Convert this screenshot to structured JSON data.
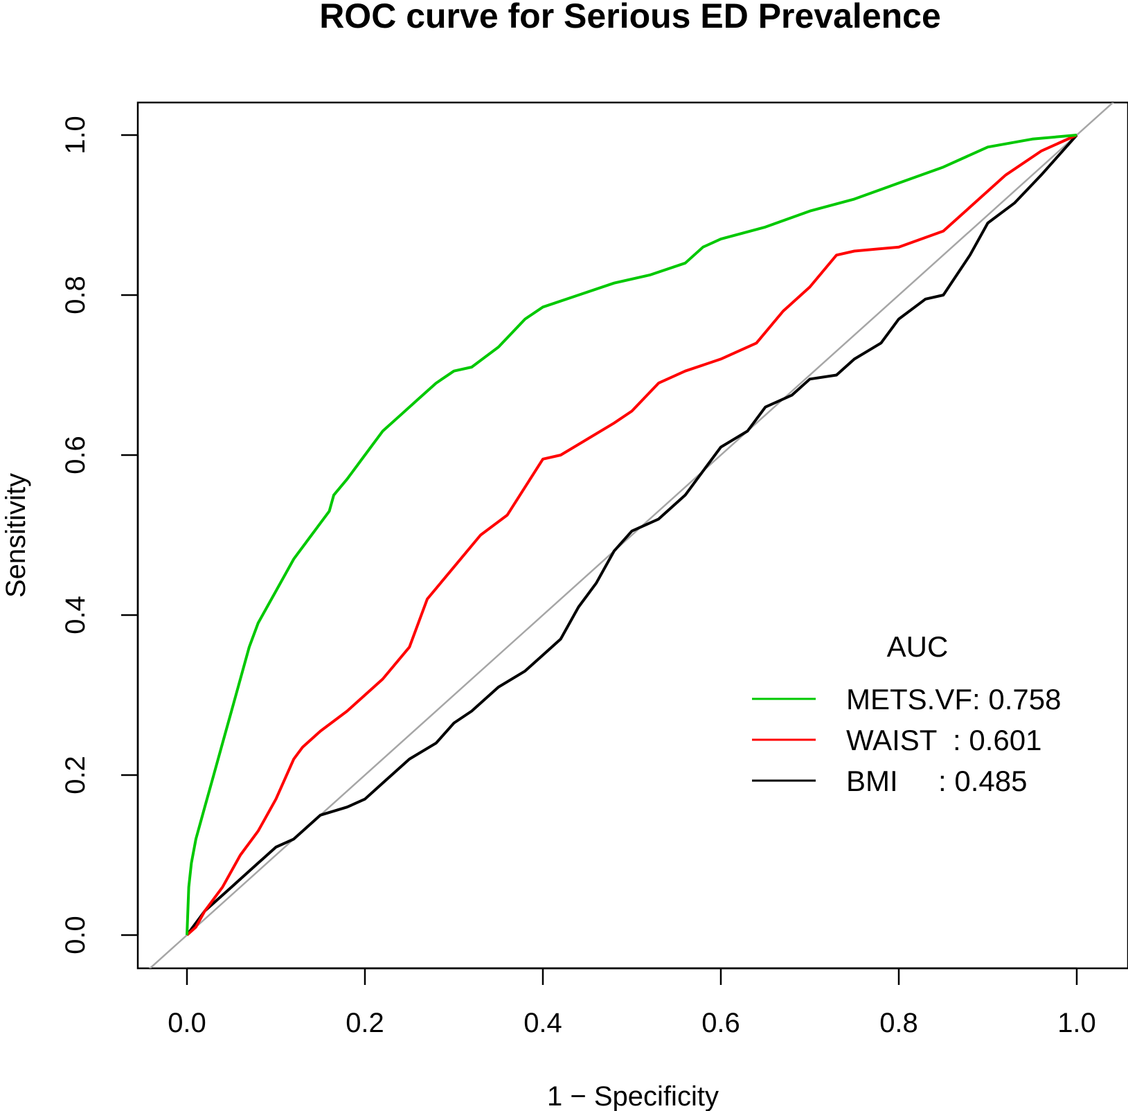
{
  "chart_data": {
    "type": "line",
    "title": "ROC curve for Serious ED Prevalence",
    "xlabel": "1 − Specificity",
    "ylabel": "Sensitivity",
    "xlim": [
      0.0,
      1.0
    ],
    "ylim": [
      0.0,
      1.0
    ],
    "xticks": [
      "0.0",
      "0.2",
      "0.4",
      "0.6",
      "0.8",
      "1.0"
    ],
    "yticks": [
      "0.0",
      "0.2",
      "0.4",
      "0.6",
      "0.8",
      "1.0"
    ],
    "grid": false,
    "reference_line": {
      "from": [
        0,
        0
      ],
      "to": [
        1,
        1
      ],
      "color": "#a6a6a6"
    },
    "legend": {
      "title": "AUC",
      "position": "bottom-right",
      "entries": [
        {
          "name": "METS.VF",
          "label": "METS.VF: 0.758",
          "auc": 0.758,
          "color": "#00c800"
        },
        {
          "name": "WAIST",
          "label": "WAIST  : 0.601",
          "auc": 0.601,
          "color": "#ff0000"
        },
        {
          "name": "BMI",
          "label": "BMI     : 0.485",
          "auc": 0.485,
          "color": "#000000"
        }
      ]
    },
    "series": [
      {
        "name": "METS.VF",
        "color": "#00c800",
        "x": [
          0.0,
          0.002,
          0.005,
          0.01,
          0.015,
          0.02,
          0.03,
          0.04,
          0.05,
          0.06,
          0.07,
          0.08,
          0.09,
          0.1,
          0.12,
          0.14,
          0.16,
          0.165,
          0.18,
          0.2,
          0.22,
          0.24,
          0.26,
          0.28,
          0.3,
          0.32,
          0.35,
          0.38,
          0.4,
          0.44,
          0.48,
          0.52,
          0.56,
          0.58,
          0.6,
          0.65,
          0.7,
          0.75,
          0.8,
          0.85,
          0.9,
          0.95,
          1.0
        ],
        "y": [
          0.0,
          0.06,
          0.09,
          0.12,
          0.14,
          0.16,
          0.2,
          0.24,
          0.28,
          0.32,
          0.36,
          0.39,
          0.41,
          0.43,
          0.47,
          0.5,
          0.53,
          0.55,
          0.57,
          0.6,
          0.63,
          0.65,
          0.67,
          0.69,
          0.705,
          0.71,
          0.735,
          0.77,
          0.785,
          0.8,
          0.815,
          0.825,
          0.84,
          0.86,
          0.87,
          0.885,
          0.905,
          0.92,
          0.94,
          0.96,
          0.985,
          0.995,
          1.0
        ]
      },
      {
        "name": "WAIST",
        "color": "#ff0000",
        "x": [
          0.0,
          0.01,
          0.02,
          0.04,
          0.06,
          0.08,
          0.1,
          0.12,
          0.13,
          0.15,
          0.18,
          0.2,
          0.22,
          0.25,
          0.27,
          0.3,
          0.33,
          0.36,
          0.38,
          0.4,
          0.42,
          0.45,
          0.48,
          0.5,
          0.53,
          0.56,
          0.6,
          0.64,
          0.67,
          0.7,
          0.73,
          0.75,
          0.8,
          0.85,
          0.88,
          0.92,
          0.96,
          0.98,
          1.0
        ],
        "y": [
          0.0,
          0.01,
          0.03,
          0.06,
          0.1,
          0.13,
          0.17,
          0.22,
          0.235,
          0.255,
          0.28,
          0.3,
          0.32,
          0.36,
          0.42,
          0.46,
          0.5,
          0.525,
          0.56,
          0.595,
          0.6,
          0.62,
          0.64,
          0.655,
          0.69,
          0.705,
          0.72,
          0.74,
          0.78,
          0.81,
          0.85,
          0.855,
          0.86,
          0.88,
          0.91,
          0.95,
          0.98,
          0.99,
          1.0
        ]
      },
      {
        "name": "BMI",
        "color": "#000000",
        "x": [
          0.0,
          0.02,
          0.05,
          0.08,
          0.1,
          0.12,
          0.15,
          0.18,
          0.2,
          0.22,
          0.25,
          0.28,
          0.3,
          0.32,
          0.35,
          0.38,
          0.4,
          0.42,
          0.44,
          0.46,
          0.48,
          0.5,
          0.53,
          0.56,
          0.58,
          0.6,
          0.63,
          0.65,
          0.68,
          0.7,
          0.73,
          0.75,
          0.78,
          0.8,
          0.83,
          0.85,
          0.88,
          0.9,
          0.93,
          0.96,
          1.0
        ],
        "y": [
          0.0,
          0.03,
          0.06,
          0.09,
          0.11,
          0.12,
          0.15,
          0.16,
          0.17,
          0.19,
          0.22,
          0.24,
          0.265,
          0.28,
          0.31,
          0.33,
          0.35,
          0.37,
          0.41,
          0.44,
          0.48,
          0.505,
          0.52,
          0.55,
          0.58,
          0.61,
          0.63,
          0.66,
          0.675,
          0.695,
          0.7,
          0.72,
          0.74,
          0.77,
          0.795,
          0.8,
          0.85,
          0.89,
          0.915,
          0.95,
          1.0
        ]
      }
    ]
  }
}
